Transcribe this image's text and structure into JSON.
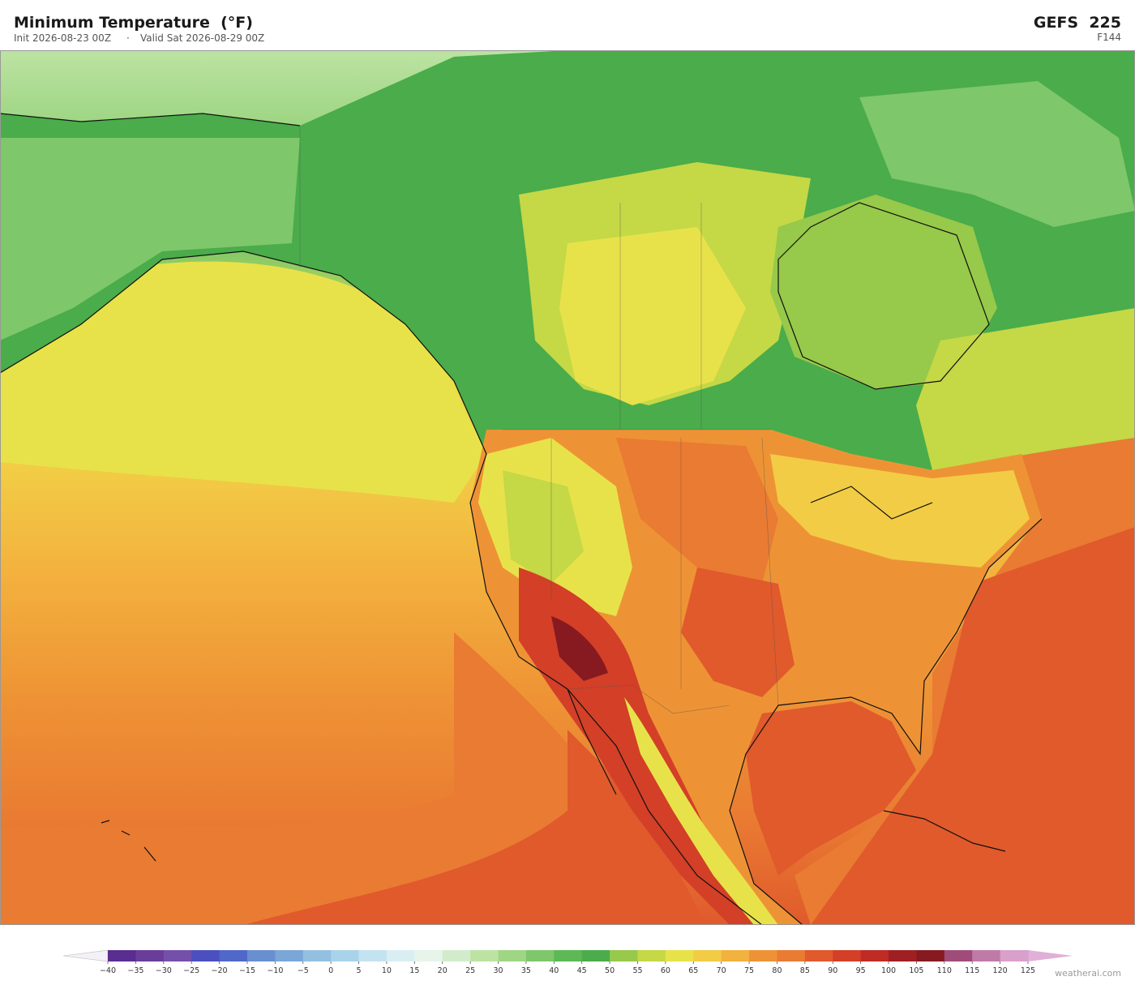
{
  "header": {
    "title": "Minimum Temperature  (°F)",
    "init": "Init 2026-08-23 00Z",
    "separator": "·",
    "valid": "Valid Sat 2026-08-29 00Z",
    "model": "GEFS  225",
    "forecast_hour": "F144"
  },
  "colorbar": {
    "ticks": [
      {
        "value": -40,
        "label": "−40"
      },
      {
        "value": -35,
        "label": "−35"
      },
      {
        "value": -30,
        "label": "−30"
      },
      {
        "value": -25,
        "label": "−25"
      },
      {
        "value": -20,
        "label": "−20"
      },
      {
        "value": -15,
        "label": "−15"
      },
      {
        "value": -10,
        "label": "−10"
      },
      {
        "value": -5,
        "label": "−5"
      },
      0,
      5,
      10,
      15,
      20,
      25,
      30,
      35,
      40,
      45,
      50,
      55,
      60,
      65,
      70,
      75,
      80,
      85,
      90,
      95,
      100,
      105,
      110,
      115,
      120,
      125
    ],
    "colors": [
      "#5a2d91",
      "#6a3d9a",
      "#7450aa",
      "#4b4fbf",
      "#5068c8",
      "#6a8fd0",
      "#7aa6d8",
      "#93c0e0",
      "#a9d3ea",
      "#c4e3f0",
      "#d9eef2",
      "#e6f4ea",
      "#d2eccb",
      "#bde3a3",
      "#9fd684",
      "#7ec76a",
      "#5db856",
      "#4aac4a",
      "#97c94a",
      "#c5d846",
      "#e8e24a",
      "#f2cc45",
      "#f3b13e",
      "#ee9335",
      "#e97b32",
      "#e05a2c",
      "#d33f27",
      "#bf2b25",
      "#a01f22",
      "#871a20",
      "#a04c7a",
      "#c07aa8",
      "#d9a0cc"
    ],
    "under_color": "#f4f0f8",
    "over_color": "#e0b0d8"
  },
  "watermark": "weatherai.com"
}
